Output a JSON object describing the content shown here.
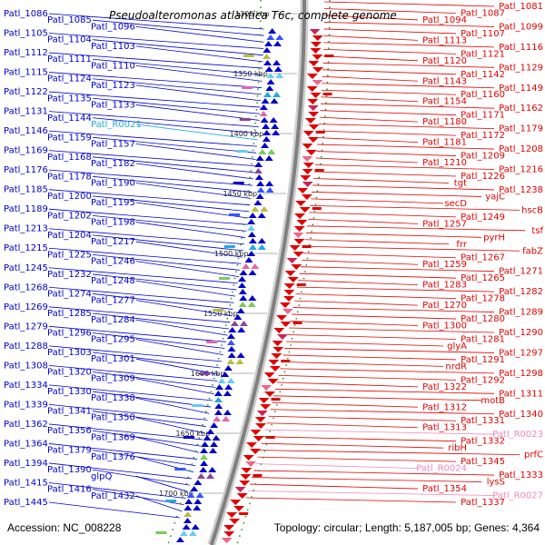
{
  "title": "Pseudoalteromonas atlantica T6c, complete genome",
  "footer": {
    "accession": "Accession: NC_008228",
    "summary": "Topology: circular; Length: 5,187,005 bp; Genes: 4,364"
  },
  "colors": {
    "forward_strand": "#0000cc",
    "reverse_strand": "#e00000",
    "rna_feature": "#22aadd",
    "misc_feature": "#ee88bb",
    "backbone": "#808080"
  },
  "ticks": [
    "1300 kbp",
    "1350 kbp",
    "1400 kbp",
    "1450 kbp",
    "1500 kbp",
    "1550 kbp",
    "1600 kbp",
    "1650 kbp",
    "1700 kbp"
  ],
  "left_labels": [
    "Patl_1086",
    "Patl_1085",
    "Patl_1096",
    "Patl_1105",
    "Patl_1104",
    "Patl_1103",
    "Patl_1112",
    "Patl_1111",
    "Patl_1110",
    "Patl_1115",
    "Patl_1124",
    "Patl_1123",
    "Patl_1122",
    "Patl_1135",
    "Patl_1133",
    "Patl_1131",
    "Patl_1144",
    "Patl_R0021",
    "Patl_1146",
    "Patl_1159",
    "Patl_1157",
    "Patl_1169",
    "Patl_1168",
    "Patl_1182",
    "Patl_1176",
    "Patl_1178",
    "Patl_1190",
    "Patl_1185",
    "Patl_1200",
    "Patl_1195",
    "Patl_1189",
    "Patl_1202",
    "Patl_1198",
    "Patl_1213",
    "Patl_1204",
    "Patl_1217",
    "Patl_1215",
    "Patl_1225",
    "Patl_1246",
    "Patl_1245",
    "Patl_1232",
    "Patl_1248",
    "Patl_1268",
    "Patl_1274",
    "Patl_1277",
    "Patl_1269",
    "Patl_1285",
    "Patl_1284",
    "Patl_1279",
    "Patl_1296",
    "Patl_1295",
    "Patl_1288",
    "Patl_1303",
    "Patl_1301",
    "Patl_1308",
    "Patl_1320",
    "Patl_1309",
    "Patl_1334",
    "Patl_1330",
    "Patl_1338",
    "Patl_1339",
    "Patl_1341",
    "Patl_1350",
    "Patl_1362",
    "Patl_1356",
    "Patl_1369",
    "Patl_1364",
    "Patl_1379",
    "Patl_1376",
    "Patl_1394",
    "Patl_1390",
    "glpQ",
    "Patl_1415",
    "Patl_1416",
    "Patl_1432",
    "Patl_1445"
  ],
  "right_labels": [
    "Patl_1081",
    "Patl_1087",
    "Patl_1094",
    "Patl_1099",
    "Patl_1107",
    "Patl_1113",
    "Patl_1116",
    "Patl_1121",
    "Patl_1120",
    "Patl_1129",
    "Patl_1142",
    "Patl_1143",
    "Patl_1149",
    "Patl_1160",
    "Patl_1154",
    "Patl_1162",
    "Patl_1171",
    "Patl_1180",
    "Patl_1179",
    "Patl_1172",
    "Patl_1181",
    "Patl_1208",
    "Patl_1209",
    "Patl_1210",
    "Patl_1216",
    "Patl_1226",
    "tgt",
    "Patl_1238",
    "yajC",
    "secD",
    "hscB",
    "Patl_1249",
    "Patl_1257",
    "tsf",
    "pyrH",
    "frr",
    "fabZ",
    "Patl_1267",
    "Patl_1259",
    "Patl_1271",
    "Patl_1265",
    "Patl_1283",
    "Patl_1282",
    "Patl_1278",
    "Patl_1270",
    "Patl_1289",
    "Patl_1280",
    "Patl_1300",
    "Patl_1290",
    "Patl_1281",
    "glyA",
    "Patl_1297",
    "Patl_1291",
    "nrdR",
    "Patl_1298",
    "Patl_1292",
    "Patl_1322",
    "Patl_1311",
    "motB",
    "Patl_1312",
    "Patl_1340",
    "Patl_1331",
    "Patl_1313",
    "Patl_R0023",
    "Patl_1332",
    "ribH",
    "prfC",
    "Patl_1345",
    "Patl_R0024",
    "Patl_1333",
    "lysS",
    "Patl_1354",
    "Patl_R0027",
    "Patl_1337"
  ]
}
